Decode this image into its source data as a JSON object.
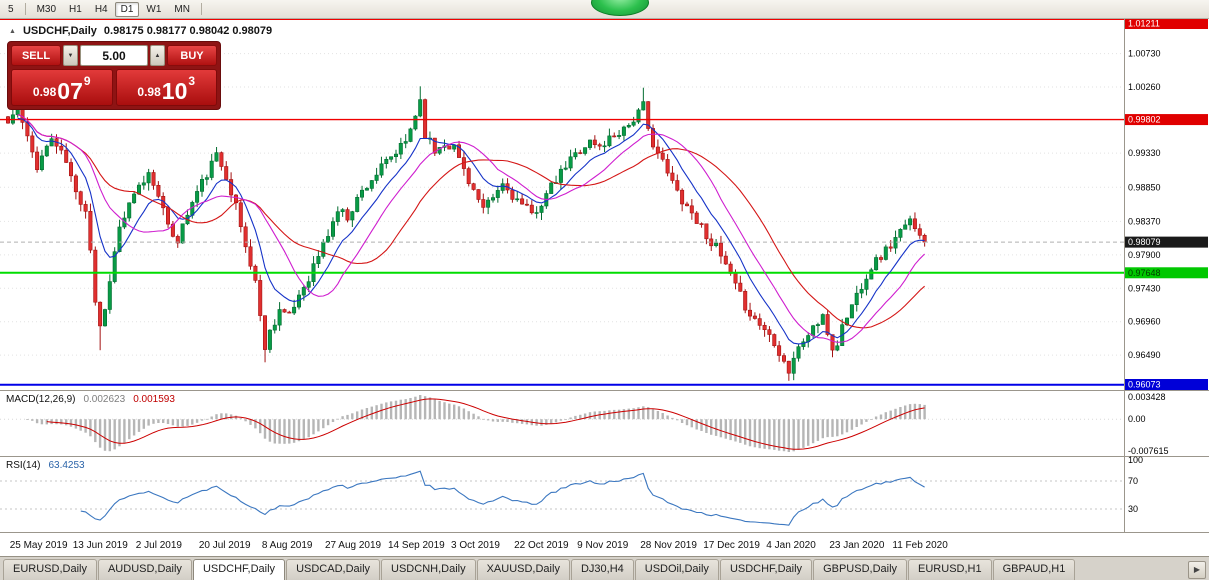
{
  "toolbar": {
    "items": [
      "5",
      "M30",
      "H1",
      "H4",
      "D1",
      "W1",
      "MN"
    ],
    "active": "D1"
  },
  "chart_header": {
    "collapse_icon": "▲",
    "symbol": "USDCHF,Daily",
    "ohlc": "0.98175 0.98177 0.98042 0.98079"
  },
  "trade_panel": {
    "sell_label": "SELL",
    "buy_label": "BUY",
    "volume": "5.00",
    "spin_down_icon": "▼",
    "spin_up_icon": "▲",
    "bid_major": "0.98",
    "bid_pips": "07",
    "bid_point": "9",
    "ask_major": "0.98",
    "ask_pips": "10",
    "ask_point": "3"
  },
  "price_axis": {
    "grid_labels": [
      "1.00730",
      "1.00260",
      "0.99330",
      "0.98850",
      "0.98370",
      "0.97900",
      "0.97430",
      "0.96960",
      "0.96490"
    ],
    "badges": [
      {
        "text": "1.01211",
        "price": 1.01211,
        "bg": "#e00000",
        "fg": "#ffffff"
      },
      {
        "text": "0.99802",
        "price": 0.99802,
        "bg": "#e00000",
        "fg": "#ffffff"
      },
      {
        "text": "0.98079",
        "price": 0.98079,
        "bg": "#1a1a1a",
        "fg": "#ffffff"
      },
      {
        "text": "0.97648",
        "price": 0.97648,
        "bg": "#00c800",
        "fg": "#003a00"
      },
      {
        "text": "0.96073",
        "price": 0.96073,
        "bg": "#0000d8",
        "fg": "#ffffff"
      }
    ]
  },
  "tabs": {
    "scroll_icon": "▶",
    "items": [
      {
        "label": "EURUSD,Daily"
      },
      {
        "label": "AUDUSD,Daily"
      },
      {
        "label": "USDCHF,Daily",
        "active": true
      },
      {
        "label": "USDCAD,Daily"
      },
      {
        "label": "USDCNH,Daily"
      },
      {
        "label": "XAUUSD,Daily"
      },
      {
        "label": "DJ30,H4"
      },
      {
        "label": "USDOil,Daily"
      },
      {
        "label": "USDCHF,Daily"
      },
      {
        "label": "GBPUSD,Daily"
      },
      {
        "label": "EURUSD,H1"
      },
      {
        "label": "GBPAUD,H1"
      }
    ]
  },
  "chart_data": {
    "type": "candlestick",
    "symbol": "USDCHF",
    "timeframe": "Daily",
    "seed": 11,
    "candle_count": 190,
    "price_range": [
      0.96,
      1.0123
    ],
    "label_first_index": 2,
    "label_step": 13,
    "x_labels": [
      "25 May 2019",
      "13 Jun 2019",
      "2 Jul 2019",
      "20 Jul 2019",
      "8 Aug 2019",
      "27 Aug 2019",
      "14 Sep 2019",
      "3 Oct 2019",
      "22 Oct 2019",
      "9 Nov 2019",
      "28 Nov 2019",
      "17 Dec 2019",
      "4 Jan 2020",
      "23 Jan 2020",
      "11 Feb 2020"
    ],
    "close_path": [
      [
        0,
        0.9975
      ],
      [
        2,
        0.9998
      ],
      [
        4,
        0.9952
      ],
      [
        6,
        0.9916
      ],
      [
        9,
        0.9954
      ],
      [
        12,
        0.9921
      ],
      [
        14,
        0.9876
      ],
      [
        16,
        0.9856
      ],
      [
        17,
        0.98
      ],
      [
        18,
        0.9725
      ],
      [
        19,
        0.9692
      ],
      [
        20,
        0.9712
      ],
      [
        21,
        0.9758
      ],
      [
        23,
        0.9828
      ],
      [
        25,
        0.9858
      ],
      [
        27,
        0.9884
      ],
      [
        29,
        0.9904
      ],
      [
        31,
        0.9879
      ],
      [
        33,
        0.9826
      ],
      [
        35,
        0.9812
      ],
      [
        37,
        0.9848
      ],
      [
        39,
        0.9878
      ],
      [
        41,
        0.9904
      ],
      [
        43,
        0.9929
      ],
      [
        45,
        0.9903
      ],
      [
        47,
        0.9858
      ],
      [
        49,
        0.9801
      ],
      [
        51,
        0.9754
      ],
      [
        52,
        0.9701
      ],
      [
        53,
        0.9663
      ],
      [
        54,
        0.9682
      ],
      [
        56,
        0.9714
      ],
      [
        58,
        0.9701
      ],
      [
        60,
        0.9734
      ],
      [
        62,
        0.9759
      ],
      [
        64,
        0.9789
      ],
      [
        66,
        0.9819
      ],
      [
        68,
        0.9853
      ],
      [
        70,
        0.9844
      ],
      [
        72,
        0.9869
      ],
      [
        74,
        0.9889
      ],
      [
        76,
        0.9904
      ],
      [
        78,
        0.9919
      ],
      [
        80,
        0.9933
      ],
      [
        82,
        0.9948
      ],
      [
        84,
        0.9988
      ],
      [
        85,
        1.0008
      ],
      [
        86,
        0.9961
      ],
      [
        88,
        0.9936
      ],
      [
        90,
        0.9949
      ],
      [
        92,
        0.9941
      ],
      [
        94,
        0.9911
      ],
      [
        96,
        0.9881
      ],
      [
        98,
        0.9851
      ],
      [
        100,
        0.9869
      ],
      [
        102,
        0.9889
      ],
      [
        104,
        0.9874
      ],
      [
        106,
        0.9859
      ],
      [
        108,
        0.9846
      ],
      [
        110,
        0.9864
      ],
      [
        112,
        0.9884
      ],
      [
        114,
        0.9904
      ],
      [
        116,
        0.9924
      ],
      [
        118,
        0.9939
      ],
      [
        120,
        0.9949
      ],
      [
        122,
        0.9941
      ],
      [
        124,
        0.9954
      ],
      [
        126,
        0.9964
      ],
      [
        128,
        0.9974
      ],
      [
        130,
        0.9989
      ],
      [
        131,
        0.9999
      ],
      [
        132,
        0.9964
      ],
      [
        134,
        0.9934
      ],
      [
        136,
        0.9904
      ],
      [
        138,
        0.9879
      ],
      [
        140,
        0.9859
      ],
      [
        142,
        0.9839
      ],
      [
        144,
        0.9819
      ],
      [
        146,
        0.9799
      ],
      [
        148,
        0.9774
      ],
      [
        150,
        0.9744
      ],
      [
        152,
        0.9719
      ],
      [
        154,
        0.9699
      ],
      [
        156,
        0.9686
      ],
      [
        158,
        0.9669
      ],
      [
        160,
        0.9641
      ],
      [
        161,
        0.9627
      ],
      [
        162,
        0.9646
      ],
      [
        164,
        0.9669
      ],
      [
        166,
        0.9689
      ],
      [
        168,
        0.9699
      ],
      [
        169,
        0.9681
      ],
      [
        170,
        0.9657
      ],
      [
        171,
        0.9666
      ],
      [
        172,
        0.9689
      ],
      [
        174,
        0.9719
      ],
      [
        176,
        0.9749
      ],
      [
        178,
        0.9774
      ],
      [
        180,
        0.9789
      ],
      [
        182,
        0.9804
      ],
      [
        184,
        0.9821
      ],
      [
        186,
        0.9836
      ],
      [
        188,
        0.98175
      ],
      [
        189,
        0.98079
      ]
    ],
    "wicks": [
      {
        "i": 19,
        "low": 0.9656
      },
      {
        "i": 53,
        "low": 0.9639
      },
      {
        "i": 85,
        "high": 1.0027
      },
      {
        "i": 131,
        "high": 1.0025
      },
      {
        "i": 161,
        "low": 0.9613
      },
      {
        "i": 170,
        "low": 0.9646
      }
    ],
    "hlines": [
      {
        "price": 1.01211,
        "color": "#f00000",
        "width": 1.4
      },
      {
        "price": 0.99802,
        "color": "#f00000",
        "width": 1.4
      },
      {
        "price": 0.97648,
        "color": "#00dd00",
        "width": 2
      },
      {
        "price": 0.96073,
        "color": "#0000e8",
        "width": 2
      }
    ],
    "current_price": 0.98079,
    "moving_averages": [
      {
        "period": 9,
        "method": "ema",
        "color": "#1633c8"
      },
      {
        "period": 27,
        "method": "sma",
        "color": "#d41616"
      },
      {
        "period": 16,
        "method": "sma",
        "color": "#cf1ecf"
      }
    ],
    "indicators": {
      "macd": {
        "label": "MACD(12,26,9)",
        "value_main": "0.002623",
        "value_signal": "0.001593",
        "fast": 12,
        "slow": 26,
        "signal": 9,
        "axis": [
          "0.003428",
          "0.00",
          "-0.007615"
        ]
      },
      "rsi": {
        "label": "RSI(14)",
        "value": "63.4253",
        "period": 14,
        "levels": [
          100,
          70,
          30
        ]
      }
    }
  }
}
